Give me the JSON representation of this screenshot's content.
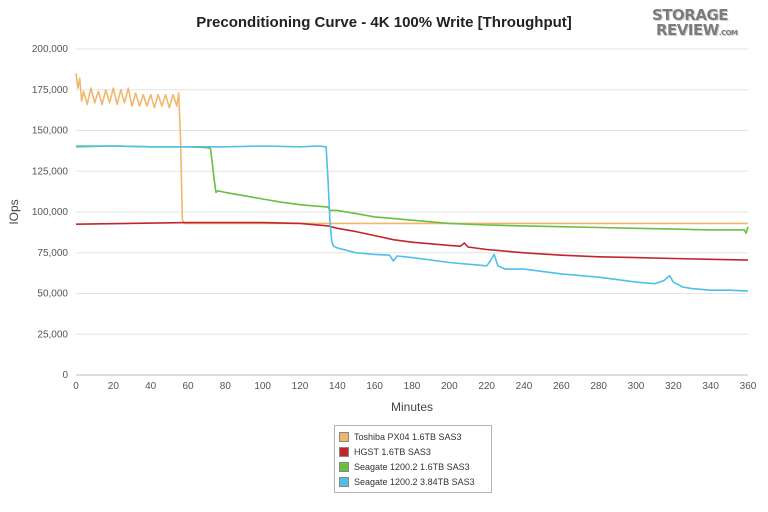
{
  "logo": {
    "line1": "STORAGE",
    "line2": "REVIEW",
    "suffix": ".COM"
  },
  "chart_data": {
    "type": "line",
    "title": "Preconditioning Curve - 4K 100% Write [Throughput]",
    "xlabel": "Minutes",
    "ylabel": "IOps",
    "xlim": [
      0,
      360
    ],
    "ylim": [
      0,
      200000
    ],
    "xticks": [
      0,
      20,
      40,
      60,
      80,
      100,
      120,
      140,
      160,
      180,
      200,
      220,
      240,
      260,
      280,
      300,
      320,
      340,
      360
    ],
    "yticks": [
      {
        "value": 0,
        "label": "0"
      },
      {
        "value": 25000,
        "label": "25,000"
      },
      {
        "value": 50000,
        "label": "50,000"
      },
      {
        "value": 75000,
        "label": "75,000"
      },
      {
        "value": 100000,
        "label": "100,000"
      },
      {
        "value": 125000,
        "label": "125,000"
      },
      {
        "value": 150000,
        "label": "150,000"
      },
      {
        "value": 175000,
        "label": "175,000"
      },
      {
        "value": 200000,
        "label": "200,000"
      }
    ],
    "grid": "horizontal",
    "legend_position": "bottom-center",
    "series": [
      {
        "name": "Toshiba PX04 1.6TB SAS3",
        "color": "#f0b86e",
        "x": [
          0,
          1,
          2,
          3,
          4,
          6,
          8,
          10,
          12,
          14,
          16,
          18,
          20,
          22,
          24,
          26,
          28,
          30,
          32,
          34,
          36,
          38,
          40,
          42,
          44,
          46,
          48,
          50,
          52,
          54,
          55,
          56,
          57,
          58,
          60,
          100,
          140,
          180,
          220,
          260,
          300,
          340,
          360
        ],
        "y": [
          185000,
          176000,
          182000,
          168000,
          174000,
          166000,
          176000,
          167000,
          174000,
          166000,
          175000,
          167000,
          176000,
          166000,
          175000,
          167000,
          176000,
          165000,
          173000,
          165000,
          172000,
          165000,
          172000,
          164000,
          172000,
          165000,
          172000,
          164000,
          172000,
          165000,
          173000,
          145000,
          95000,
          93000,
          93000,
          93000,
          93000,
          93000,
          93000,
          93000,
          93000,
          93000,
          93000
        ]
      },
      {
        "name": "HGST 1.6TB SAS3",
        "color": "#c0272d",
        "x": [
          0,
          60,
          100,
          120,
          135,
          140,
          150,
          160,
          170,
          180,
          190,
          200,
          206,
          208,
          210,
          220,
          240,
          260,
          280,
          300,
          320,
          340,
          360
        ],
        "y": [
          92500,
          93500,
          93500,
          93000,
          91500,
          90000,
          88000,
          85500,
          83000,
          81500,
          80500,
          79500,
          79000,
          81000,
          78500,
          77000,
          75000,
          73500,
          72500,
          72000,
          71500,
          71000,
          70500
        ]
      },
      {
        "name": "Seagate 1200.2 1.6TB SAS3",
        "color": "#6abf3f",
        "x": [
          0,
          20,
          40,
          60,
          70,
          72,
          73,
          74,
          75,
          76,
          80,
          90,
          100,
          110,
          120,
          130,
          135,
          136,
          140,
          150,
          160,
          180,
          200,
          220,
          240,
          260,
          280,
          300,
          320,
          340,
          358,
          359,
          360
        ],
        "y": [
          140000,
          140500,
          140000,
          140000,
          139500,
          139000,
          130000,
          120000,
          112000,
          113000,
          112000,
          110000,
          108000,
          106000,
          104500,
          103500,
          103000,
          101000,
          101000,
          99000,
          97000,
          95000,
          93000,
          92000,
          91500,
          91000,
          90500,
          90000,
          89500,
          89000,
          89000,
          87000,
          91000
        ]
      },
      {
        "name": "Seagate 1200.2 3.84TB SAS3",
        "color": "#4fc0e8",
        "x": [
          0,
          20,
          40,
          60,
          80,
          100,
          120,
          130,
          134,
          135,
          136,
          137,
          138,
          140,
          150,
          160,
          168,
          170,
          172,
          180,
          200,
          210,
          220,
          222,
          224,
          226,
          230,
          240,
          260,
          280,
          300,
          310,
          315,
          318,
          320,
          325,
          330,
          340,
          350,
          360
        ],
        "y": [
          140500,
          140500,
          140000,
          140000,
          140000,
          140500,
          140000,
          140500,
          140000,
          120000,
          95000,
          82000,
          79000,
          78000,
          75000,
          74000,
          73500,
          70000,
          73000,
          72000,
          69000,
          68000,
          67000,
          70000,
          74000,
          67000,
          65000,
          65000,
          62000,
          60000,
          57000,
          56000,
          58000,
          61000,
          57000,
          54000,
          53000,
          52000,
          52000,
          51500
        ]
      }
    ]
  }
}
